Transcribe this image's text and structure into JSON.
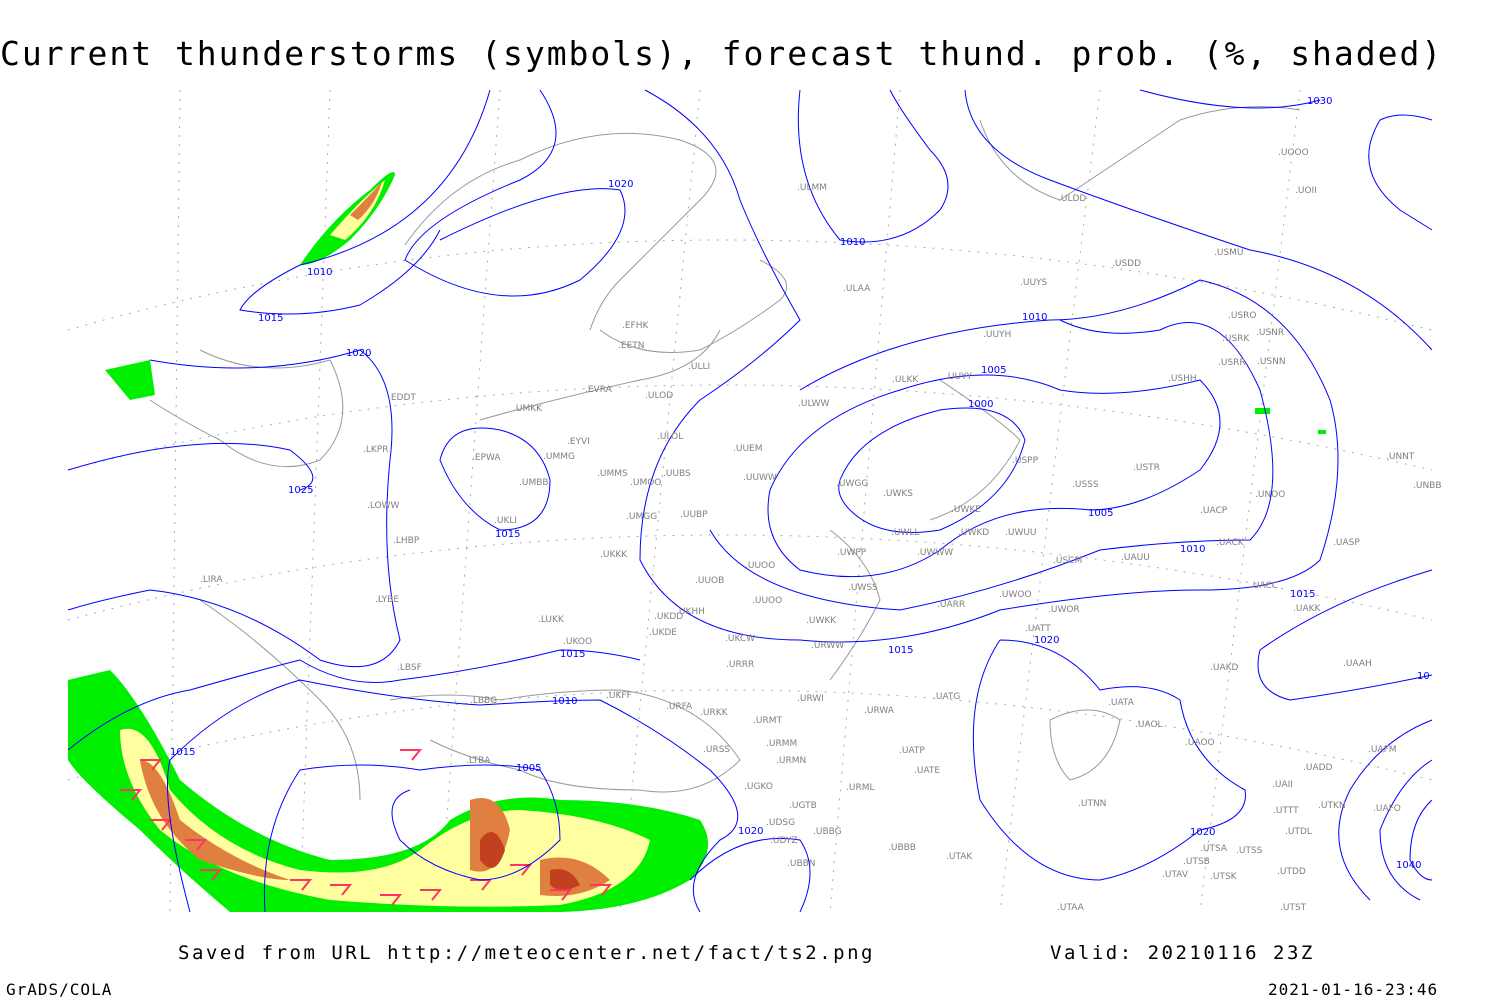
{
  "title": "Current thunderstorms (symbols), forecast thund. prob. (%, shaded)",
  "footer": {
    "saved_from": "Saved from URL http://meteocenter.net/fact/ts2.png",
    "valid": "Valid: 20210116 23Z",
    "software": "GrADS/COLA",
    "timestamp": "2021-01-16-23:46"
  },
  "colors": {
    "isobar": "#0000ff",
    "station_label": "#808080",
    "prob_low": "#00ee00",
    "prob_mid": "#ffffa0",
    "prob_high": "#e08040",
    "prob_top": "#c04020",
    "thunder_symbol": "#ff3366"
  },
  "isobar_labels": [
    "1030",
    "1020",
    "1010",
    "1010",
    "1015",
    "1020",
    "1025",
    "1015",
    "1010",
    "1005",
    "1000",
    "1005",
    "1010",
    "1015",
    "1020",
    "1015",
    "1015",
    "1010",
    "1005",
    "1015",
    "1020",
    "1020",
    "1040",
    "10"
  ],
  "stations": [
    "EFHK",
    "EETN",
    "EVRA",
    "ULOD",
    "ULLI",
    "UMKK",
    "EYVI",
    "UMMG",
    "ULOL",
    "EPWA",
    "UMBB",
    "UKLI",
    "UMMS",
    "UMOO",
    "UUBS",
    "UUEM",
    "UUWW",
    "UMGG",
    "UUBP",
    "UKKK",
    "UUOO",
    "UUOB",
    "UKHH",
    "UKDD",
    "UKDE",
    "LUKK",
    "UKOO",
    "UKCW",
    "UKFF",
    "URFA",
    "URKK",
    "URWI",
    "URMT",
    "URMM",
    "URMN",
    "URRR",
    "URSS",
    "UGKO",
    "UGTB",
    "UDSG",
    "UBBG",
    "UBBN",
    "UDYZ",
    "URML",
    "UATG",
    "URWA",
    "UATP",
    "UATE",
    "UBBB",
    "UTAK",
    "UTAA",
    "UTSA",
    "UTSS",
    "UTSB",
    "UTSK",
    "UTAV",
    "UTNN",
    "UAOL",
    "UATA",
    "UAOO",
    "UAKD",
    "UAII",
    "UTTT",
    "UTDL",
    "UTDD",
    "UTST",
    "UADD",
    "UAFM",
    "UAFO",
    "UTKN",
    "UAAH",
    "UAKK",
    "UACC",
    "UASP",
    "UNBB",
    "UNNT",
    "UNOO",
    "UACK",
    "UACP",
    "USSS",
    "USTR",
    "USPP",
    "USHH",
    "USRR",
    "USNN",
    "USRK",
    "USRO",
    "USNR",
    "USMU",
    "USDD",
    "UUYS",
    "UUYH",
    "UUYY",
    "ULKK",
    "ULWW",
    "ULAA",
    "ULMM",
    "ULDD",
    "UOOO",
    "UOII",
    "UWGG",
    "UWKS",
    "UWKE",
    "UWLL",
    "UWPP",
    "UWWW",
    "UWKD",
    "UWUU",
    "USCM",
    "UAUU",
    "UWSS",
    "UARR",
    "UWOO",
    "UWOR",
    "UATT",
    "URWW",
    "UUOO",
    "UWKK",
    "LIRA",
    "LYBE",
    "LBSF",
    "LBBG",
    "LTBA",
    "LHBP",
    "LOWW",
    "LKPR",
    "EDDT"
  ]
}
